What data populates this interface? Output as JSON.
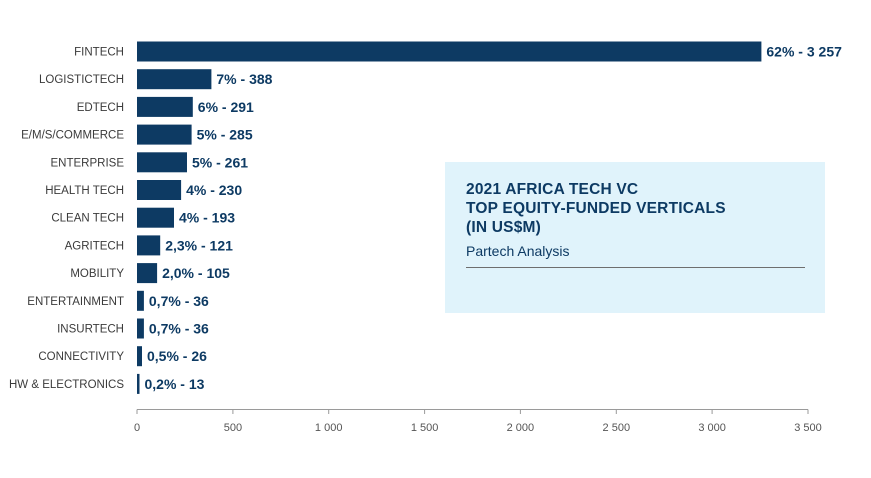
{
  "chart_data": {
    "type": "bar",
    "orientation": "horizontal",
    "title_lines": [
      "2021 AFRICA TECH VC",
      "TOP EQUITY-FUNDED VERTICALS",
      "(IN US$M)"
    ],
    "subtitle": "Partech Analysis",
    "categories": [
      "FINTECH",
      "LOGISTICTECH",
      "EDTECH",
      "E/M/S/COMMERCE",
      "ENTERPRISE",
      "HEALTH TECH",
      "CLEAN TECH",
      "AGRITECH",
      "MOBILITY",
      "ENTERTAINMENT",
      "INSURTECH",
      "CONNECTIVITY",
      "HW & ELECTRONICS"
    ],
    "values": [
      3257,
      388,
      291,
      285,
      261,
      230,
      193,
      121,
      105,
      36,
      36,
      26,
      13
    ],
    "data_labels": [
      "62% - 3 257",
      "7% - 388",
      "6% - 291",
      "5% - 285",
      "5% - 261",
      "4% - 230",
      "4% - 193",
      "2,3% - 121",
      "2,0% - 105",
      "0,7% - 36",
      "0,7% - 36",
      "0,5% - 26",
      "0,2% - 13"
    ],
    "x_ticks": [
      0,
      500,
      1000,
      1500,
      2000,
      2500,
      3000,
      3500
    ],
    "x_tick_labels": [
      "0",
      "500",
      "1 000",
      "1 500",
      "2 000",
      "2 500",
      "3 000",
      "3 500"
    ],
    "xlim": [
      0,
      3500
    ],
    "grid": false,
    "bar_color": "#0d3a63",
    "title_box_color": "#e0f3fb"
  }
}
